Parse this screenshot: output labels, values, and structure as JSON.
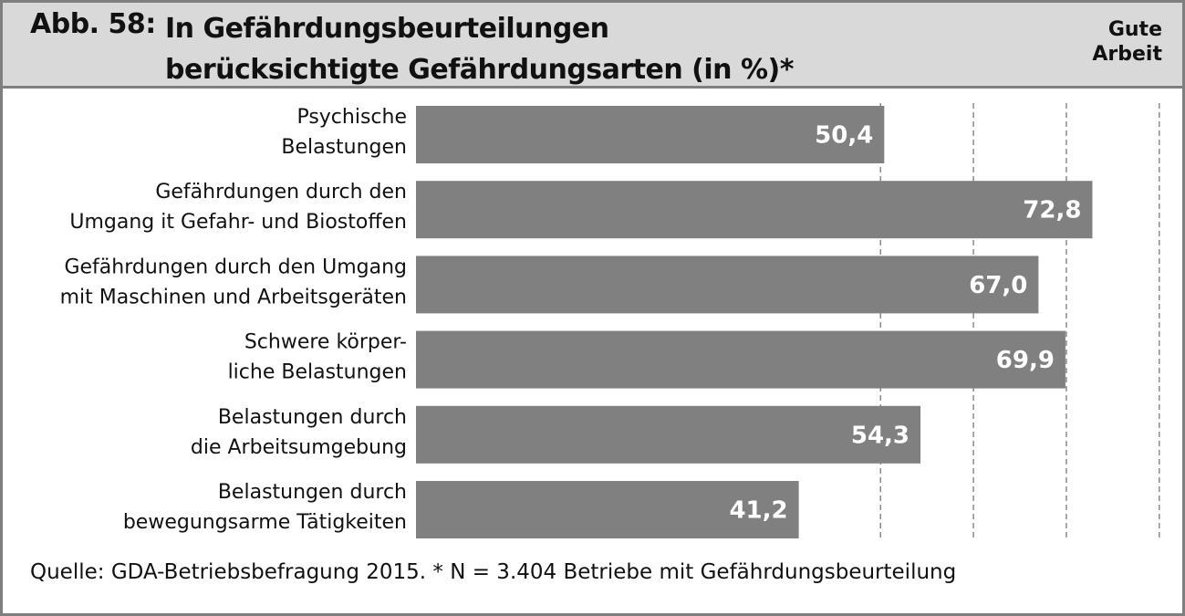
{
  "header": {
    "figure_label": "Abb. 58:",
    "title_lines": [
      "In Gefährdungsbeurteilungen",
      "berücksichtigte Gefährdungsarten (in %)*"
    ],
    "brand_lines": [
      "Gute",
      "Arbeit"
    ]
  },
  "footer": {
    "source": "Quelle: GDA-Betriebsbefragung 2015. * N = 3.404 Betriebe mit Gefährdungsbeurteilung"
  },
  "colors": {
    "bar": "#808080",
    "header_bg": "#d9d9d9",
    "border": "#7f7f7f",
    "value_text": "#ffffff"
  },
  "chart_data": {
    "type": "bar",
    "orientation": "horizontal",
    "title": "In Gefährdungsbeurteilungen berücksichtigte Gefährdungsarten (in %)*",
    "categories": [
      [
        "Psychische",
        "Belastungen"
      ],
      [
        "Gefährdungen durch den",
        "Umgang it Gefahr- und Biostoffen"
      ],
      [
        "Gefährdungen durch den Umgang",
        "mit Maschinen und Arbeitsgeräten"
      ],
      [
        "Schwere körper-",
        "liche Belastungen"
      ],
      [
        "Belastungen durch",
        "die Arbeitsumgebung"
      ],
      [
        "Belastungen durch",
        "bewegungsarme Tätigkeiten"
      ]
    ],
    "values": [
      50.4,
      72.8,
      67.0,
      69.9,
      54.3,
      41.2
    ],
    "value_labels": [
      "50,4",
      "72,8",
      "67,0",
      "69,9",
      "54,3",
      "41,2"
    ],
    "xlim": [
      0,
      80
    ],
    "gridlines": [
      50,
      60,
      70,
      80
    ],
    "grid_style": "dashed vertical",
    "xlabel": "",
    "ylabel": ""
  }
}
